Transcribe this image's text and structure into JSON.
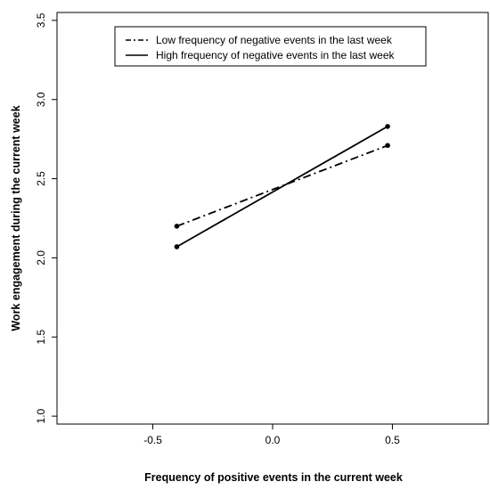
{
  "chart_data": {
    "type": "line",
    "title": "",
    "xlabel": "Frequency of positive events in the current week",
    "ylabel": "Work engagement during the current week",
    "xlim": [
      -0.9,
      0.9
    ],
    "ylim": [
      0.95,
      3.55
    ],
    "x_ticks": [
      -0.5,
      0.0,
      0.5
    ],
    "x_tick_labels": [
      "-0.5",
      "0.0",
      "0.5"
    ],
    "y_ticks": [
      1.0,
      1.5,
      2.0,
      2.5,
      3.0,
      3.5
    ],
    "y_tick_labels": [
      "1.0",
      "1.5",
      "2.0",
      "2.5",
      "3.0",
      "3.5"
    ],
    "grid": false,
    "legend_position": "top",
    "series": [
      {
        "name": "Low frequency of negative events in the last week",
        "line_style": "dashed",
        "color": "#000000",
        "x": [
          -0.4,
          0.48
        ],
        "y": [
          2.2,
          2.71
        ]
      },
      {
        "name": "High frequency of negative events in the last week",
        "line_style": "solid",
        "color": "#000000",
        "x": [
          -0.4,
          0.48
        ],
        "y": [
          2.07,
          2.83
        ]
      }
    ]
  }
}
